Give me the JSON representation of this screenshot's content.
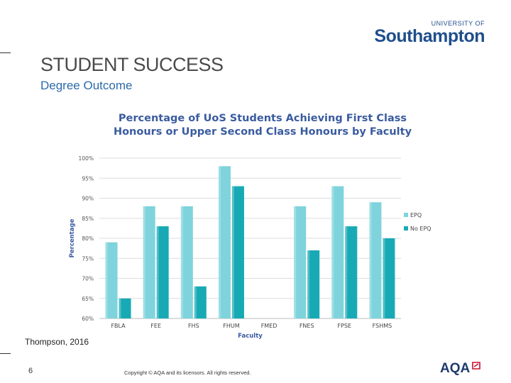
{
  "branding": {
    "logo_line1": "UNIVERSITY OF",
    "logo_line2": "Southampton",
    "brand_color": "#1f4e8c",
    "aqa_logo": "AQA",
    "aqa_accent": "#c8102e"
  },
  "slide": {
    "title": "STUDENT SUCCESS",
    "subtitle": "Degree Outcome",
    "citation": "Thompson, 2016",
    "page_number": "6",
    "copyright": "Copyright © AQA and its licensors. All rights reserved."
  },
  "chart_data": {
    "type": "bar",
    "title_line1": "Percentage of UoS Students Achieving First Class",
    "title_line2": "Honours or Upper Second Class Honours by Faculty",
    "xlabel": "Faculty",
    "ylabel": "Percentage",
    "ylim": [
      60,
      100
    ],
    "yticks": [
      "60%",
      "65%",
      "70%",
      "75%",
      "80%",
      "85%",
      "90%",
      "95%",
      "100%"
    ],
    "ytick_values": [
      60,
      65,
      70,
      75,
      80,
      85,
      90,
      95,
      100
    ],
    "categories": [
      "FBLA",
      "FEE",
      "FHS",
      "FHUM",
      "FMED",
      "FNES",
      "FPSE",
      "FSHMS"
    ],
    "grid": true,
    "legend_position": "right",
    "series": [
      {
        "name": "EPQ",
        "color": "#7fd3dc",
        "values": [
          79,
          88,
          88,
          98,
          null,
          88,
          93,
          89
        ]
      },
      {
        "name": "No EPQ",
        "color": "#17aab5",
        "values": [
          65,
          83,
          68,
          93,
          null,
          77,
          83,
          80
        ]
      }
    ]
  }
}
